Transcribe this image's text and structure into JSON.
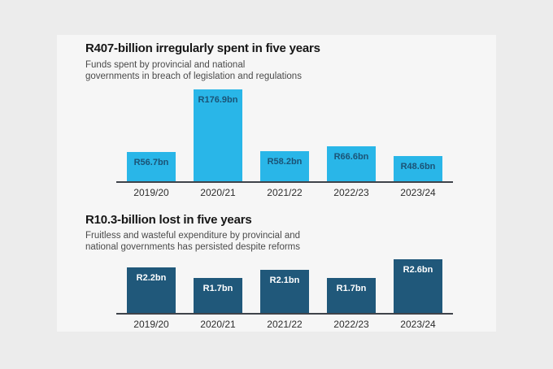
{
  "page": {
    "background_color": "#ececec",
    "card_background_color": "#f6f6f6",
    "axis_line_color": "#3f434a",
    "x_label_color": "#2e2e2e"
  },
  "chart_data": [
    {
      "type": "bar",
      "title": "R407-billion irregularly spent in five years",
      "subtitle": "Funds spent by provincial and national\ngovernments in breach of legislation and regulations",
      "categories": [
        "2019/20",
        "2020/21",
        "2021/22",
        "2022/23",
        "2023/24"
      ],
      "values": [
        56.7,
        176.9,
        58.2,
        66.6,
        48.6
      ],
      "value_labels": [
        "R56.7bn",
        "R176.9bn",
        "R58.2bn",
        "R66.6bn",
        "R48.6bn"
      ],
      "ylim": [
        0,
        176.9
      ],
      "grid": false,
      "legend": "none",
      "bar_color": "#29b6e8",
      "value_label_color": "#1b5376"
    },
    {
      "type": "bar",
      "title": "R10.3-billion lost in five years",
      "subtitle": "Fruitless and wasteful expenditure by provincial and\nnational governments has persisted despite reforms",
      "categories": [
        "2019/20",
        "2020/21",
        "2021/22",
        "2022/23",
        "2023/24"
      ],
      "values": [
        2.2,
        1.7,
        2.1,
        1.7,
        2.6
      ],
      "value_labels": [
        "R2.2bn",
        "R1.7bn",
        "R2.1bn",
        "R1.7bn",
        "R2.6bn"
      ],
      "ylim": [
        0,
        2.6
      ],
      "grid": false,
      "legend": "none",
      "bar_color": "#20587a",
      "value_label_color": "#ffffff"
    }
  ]
}
